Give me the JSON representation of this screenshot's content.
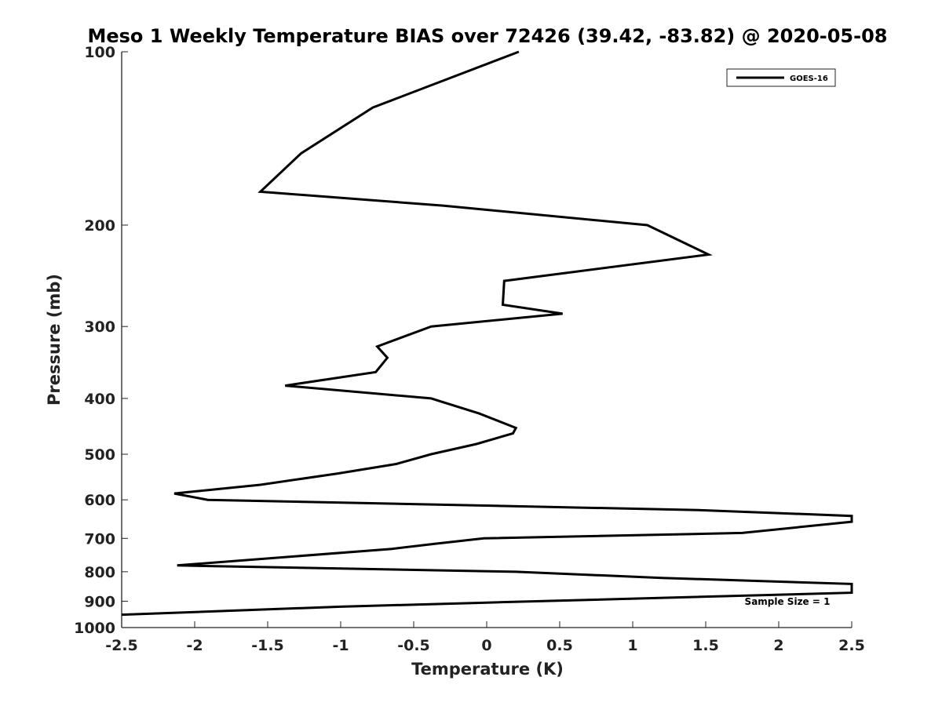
{
  "chart_data": {
    "type": "line",
    "title": "Meso 1 Weekly Temperature BIAS over 72426 (39.42, -83.82) @ 2020-05-08",
    "xlabel": "Temperature (K)",
    "ylabel": "Pressure (mb)",
    "xlim": [
      -2.5,
      2.5
    ],
    "ylim": [
      100,
      1000
    ],
    "y_scale": "log",
    "y_reversed": true,
    "x_ticks": [
      -2.5,
      -2,
      -1.5,
      -1,
      -0.5,
      0,
      0.5,
      1,
      1.5,
      2,
      2.5
    ],
    "x_tick_labels": [
      "-2.5",
      "-2",
      "-1.5",
      "-1",
      "-0.5",
      "0",
      "0.5",
      "1",
      "1.5",
      "2",
      "2.5"
    ],
    "y_ticks": [
      100,
      200,
      300,
      400,
      500,
      600,
      700,
      800,
      900,
      1000
    ],
    "y_tick_labels": [
      "100",
      "200",
      "300",
      "400",
      "500",
      "600",
      "700",
      "800",
      "900",
      "1000"
    ],
    "grid": false,
    "legend_position": "top-right",
    "series": [
      {
        "name": "GOES-16",
        "color": "#000000",
        "points": [
          {
            "x": 0.22,
            "p": 100
          },
          {
            "x": -0.78,
            "p": 125
          },
          {
            "x": -1.27,
            "p": 150
          },
          {
            "x": -1.55,
            "p": 175
          },
          {
            "x": -0.3,
            "p": 185
          },
          {
            "x": 1.1,
            "p": 200
          },
          {
            "x": 1.52,
            "p": 225
          },
          {
            "x": 0.12,
            "p": 250
          },
          {
            "x": 0.11,
            "p": 275
          },
          {
            "x": 0.52,
            "p": 285
          },
          {
            "x": -0.38,
            "p": 300
          },
          {
            "x": -0.75,
            "p": 325
          },
          {
            "x": -0.68,
            "p": 340
          },
          {
            "x": -0.76,
            "p": 360
          },
          {
            "x": -1.38,
            "p": 380
          },
          {
            "x": -0.38,
            "p": 400
          },
          {
            "x": -0.05,
            "p": 425
          },
          {
            "x": 0.2,
            "p": 450
          },
          {
            "x": 0.18,
            "p": 460
          },
          {
            "x": -0.07,
            "p": 480
          },
          {
            "x": -0.38,
            "p": 500
          },
          {
            "x": -0.62,
            "p": 520
          },
          {
            "x": -1.02,
            "p": 540
          },
          {
            "x": -1.55,
            "p": 565
          },
          {
            "x": -2.14,
            "p": 585
          },
          {
            "x": -1.91,
            "p": 600
          },
          {
            "x": 1.45,
            "p": 625
          },
          {
            "x": 2.5,
            "p": 640
          },
          {
            "x": 2.5,
            "p": 655
          },
          {
            "x": 1.75,
            "p": 685
          },
          {
            "x": -0.02,
            "p": 700
          },
          {
            "x": -0.35,
            "p": 715
          },
          {
            "x": -0.65,
            "p": 730
          },
          {
            "x": -2.12,
            "p": 780
          },
          {
            "x": 0.2,
            "p": 800
          },
          {
            "x": 1.2,
            "p": 820
          },
          {
            "x": 2.5,
            "p": 840
          },
          {
            "x": 2.5,
            "p": 870
          },
          {
            "x": 0.0,
            "p": 905
          },
          {
            "x": -1.0,
            "p": 920
          },
          {
            "x": -2.5,
            "p": 950
          }
        ]
      }
    ],
    "annotations": [
      "Sample Size = 1"
    ]
  }
}
